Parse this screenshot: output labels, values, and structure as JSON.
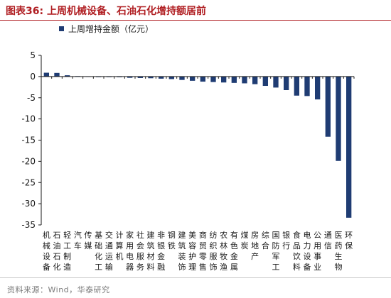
{
  "title": "图表36:  上周机械设备、石油石化增持额居前",
  "source": "资料来源：Wind，华泰研究",
  "colors": {
    "bar": "#1f3c73",
    "title": "#b01e22",
    "axis": "#1a1a1a"
  },
  "chart_data": {
    "type": "bar",
    "ylim": [
      -35,
      5
    ],
    "yticks": [
      5,
      0,
      -5,
      -10,
      -15,
      -20,
      -25,
      -30,
      -35
    ],
    "series": [
      {
        "name": "上周增持金额（亿元）",
        "values": [
          0.9,
          0.85,
          0.3,
          0.1,
          0.05,
          -0.05,
          -0.1,
          -0.15,
          -0.3,
          -0.35,
          -0.4,
          -0.5,
          -0.6,
          -0.8,
          -1.0,
          -1.2,
          -1.3,
          -1.4,
          -1.5,
          -1.6,
          -1.8,
          -2.2,
          -2.6,
          -3.2,
          -4.5,
          -4.6,
          -5.4,
          -14.2,
          -19.9,
          -33.3
        ]
      }
    ],
    "categories": [
      "机械设备",
      "石油石化",
      "轻工制造",
      "汽车",
      "传媒",
      "基础化工",
      "交通运输",
      "计算机",
      "家用电器",
      "社会服务",
      "建筑材料",
      "非银金融",
      "钢铁",
      "建筑装饰",
      "美容护理",
      "商贸零售",
      "纺织服饰",
      "农林牧渔",
      "有色金属",
      "煤炭",
      "房地产",
      "综合",
      "国防军工",
      "银行",
      "食品饮料",
      "电力设备",
      "公用事业",
      "通信",
      "医药生物",
      "环保"
    ],
    "category_lines": [
      [
        "机",
        "械",
        "设",
        "备"
      ],
      [
        "石",
        "油",
        "石",
        "化"
      ],
      [
        "轻",
        "工",
        "制",
        "造"
      ],
      [
        "汽",
        "车",
        "",
        ""
      ],
      [
        "传",
        "媒",
        "",
        ""
      ],
      [
        "基",
        "础",
        "化",
        "工"
      ],
      [
        "交",
        "通",
        "运",
        "输"
      ],
      [
        "计",
        "算",
        "机",
        ""
      ],
      [
        "家",
        "用",
        "电",
        "器"
      ],
      [
        "社",
        "会",
        "服",
        "务"
      ],
      [
        "建",
        "筑",
        "材",
        "料"
      ],
      [
        "非",
        "银",
        "金",
        "融"
      ],
      [
        "钢",
        "铁",
        "",
        ""
      ],
      [
        "建",
        "筑",
        "装",
        "饰"
      ],
      [
        "美",
        "容",
        "护",
        "理"
      ],
      [
        "商",
        "贸",
        "零",
        "售"
      ],
      [
        "纺",
        "织",
        "服",
        "饰"
      ],
      [
        "农",
        "林",
        "牧",
        "渔"
      ],
      [
        "有",
        "色",
        "金",
        "属"
      ],
      [
        "煤",
        "炭",
        "",
        ""
      ],
      [
        "房",
        "地",
        "产",
        ""
      ],
      [
        "综",
        "合",
        "",
        ""
      ],
      [
        "国",
        "防",
        "军",
        "工"
      ],
      [
        "银",
        "行",
        "",
        ""
      ],
      [
        "食",
        "品",
        "饮",
        "料"
      ],
      [
        "电",
        "力",
        "设",
        "备"
      ],
      [
        "公",
        "用",
        "事",
        "业"
      ],
      [
        "通",
        "信",
        "",
        ""
      ],
      [
        "医",
        "药",
        "生",
        "物"
      ],
      [
        "环",
        "保",
        "",
        ""
      ]
    ],
    "grid": false,
    "legend_position": "top-left"
  }
}
